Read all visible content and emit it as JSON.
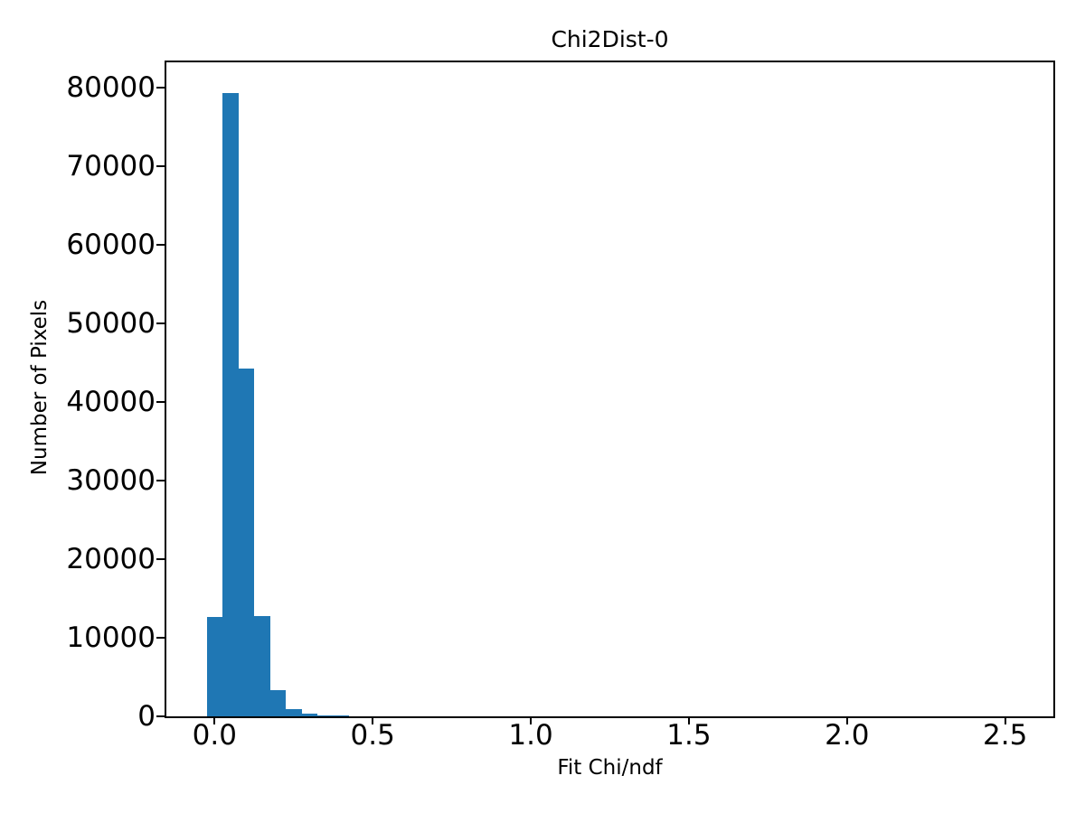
{
  "chart_data": {
    "type": "bar",
    "subtype": "histogram",
    "title": "Chi2Dist-0",
    "xlabel": "Fit Chi/ndf",
    "ylabel": "Number of Pixels",
    "bar_color": "#1f77b4",
    "text_color": "#000000",
    "background_color": "#ffffff",
    "grid": false,
    "legend_position": "none",
    "bin_width": 0.05,
    "bins": [
      {
        "start": -0.025,
        "end": 0.025,
        "count": 12700
      },
      {
        "start": 0.025,
        "end": 0.075,
        "count": 79300
      },
      {
        "start": 0.075,
        "end": 0.125,
        "count": 44300
      },
      {
        "start": 0.125,
        "end": 0.175,
        "count": 12800
      },
      {
        "start": 0.175,
        "end": 0.225,
        "count": 3300
      },
      {
        "start": 0.225,
        "end": 0.275,
        "count": 950
      },
      {
        "start": 0.275,
        "end": 0.325,
        "count": 370
      },
      {
        "start": 0.325,
        "end": 0.375,
        "count": 170
      },
      {
        "start": 0.375,
        "end": 0.425,
        "count": 100
      }
    ],
    "xticks": [
      0.0,
      0.5,
      1.0,
      1.5,
      2.0,
      2.5
    ],
    "xtick_labels": [
      "0.0",
      "0.5",
      "1.0",
      "1.5",
      "2.0",
      "2.5"
    ],
    "yticks": [
      0,
      10000,
      20000,
      30000,
      40000,
      50000,
      60000,
      70000,
      80000
    ],
    "ytick_labels": [
      "0",
      "10000",
      "20000",
      "30000",
      "40000",
      "50000",
      "60000",
      "70000",
      "80000"
    ],
    "xlim": [
      -0.1525,
      2.6525
    ],
    "ylim": [
      0,
      83265
    ]
  }
}
